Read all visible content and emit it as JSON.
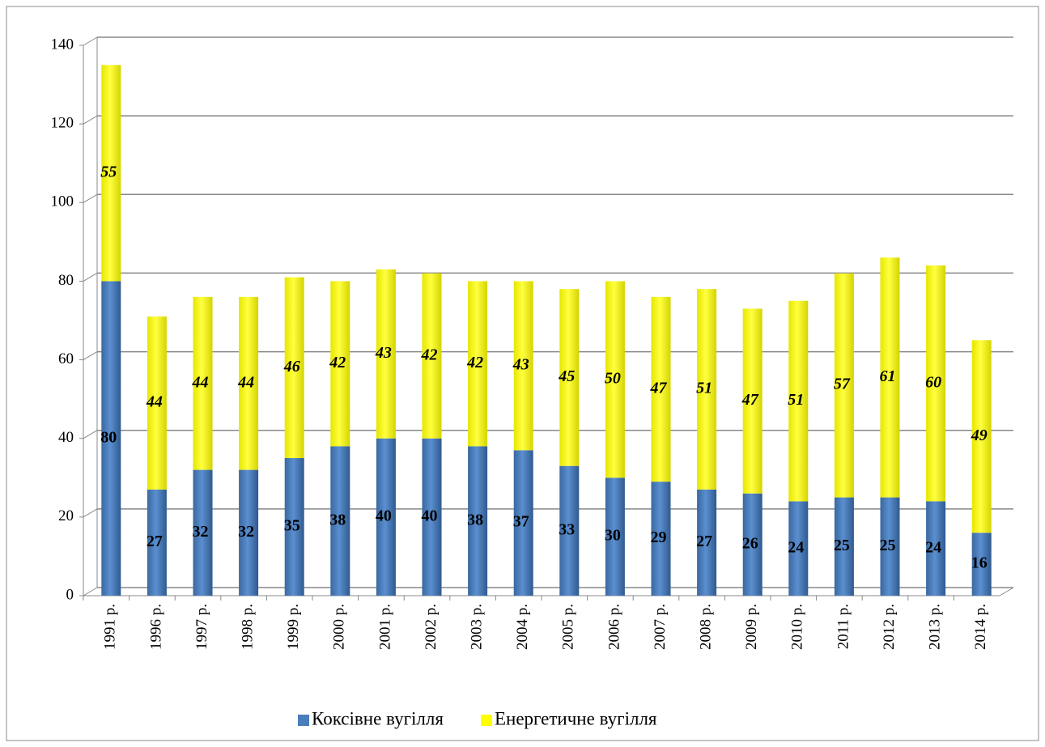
{
  "chart_data": {
    "type": "bar",
    "stacked": true,
    "categories": [
      "1991 р.",
      "1996 р.",
      "1997 р.",
      "1998 р.",
      "1999 р.",
      "2000 р.",
      "2001 р.",
      "2002 р.",
      "2003 р.",
      "2004 р.",
      "2005 р.",
      "2006 р.",
      "2007 р.",
      "2008 р.",
      "2009 р.",
      "2010 р.",
      "2011 р.",
      "2012 р.",
      "2013 р.",
      "2014 р."
    ],
    "series": [
      {
        "name": "Коксівне вугілля",
        "color": "#4a7ebb",
        "values": [
          80,
          27,
          32,
          32,
          35,
          38,
          40,
          40,
          38,
          37,
          33,
          30,
          29,
          27,
          26,
          24,
          25,
          25,
          24,
          16
        ]
      },
      {
        "name": "Енергетичне вугілля",
        "color": "#ffff00",
        "values": [
          55,
          44,
          44,
          44,
          46,
          42,
          43,
          42,
          42,
          43,
          45,
          50,
          47,
          51,
          47,
          51,
          57,
          61,
          60,
          49
        ]
      }
    ],
    "ylim": [
      0,
      140
    ],
    "yticks": [
      0,
      20,
      40,
      60,
      80,
      100,
      120,
      140
    ],
    "grid": true,
    "legend": "bottom"
  }
}
